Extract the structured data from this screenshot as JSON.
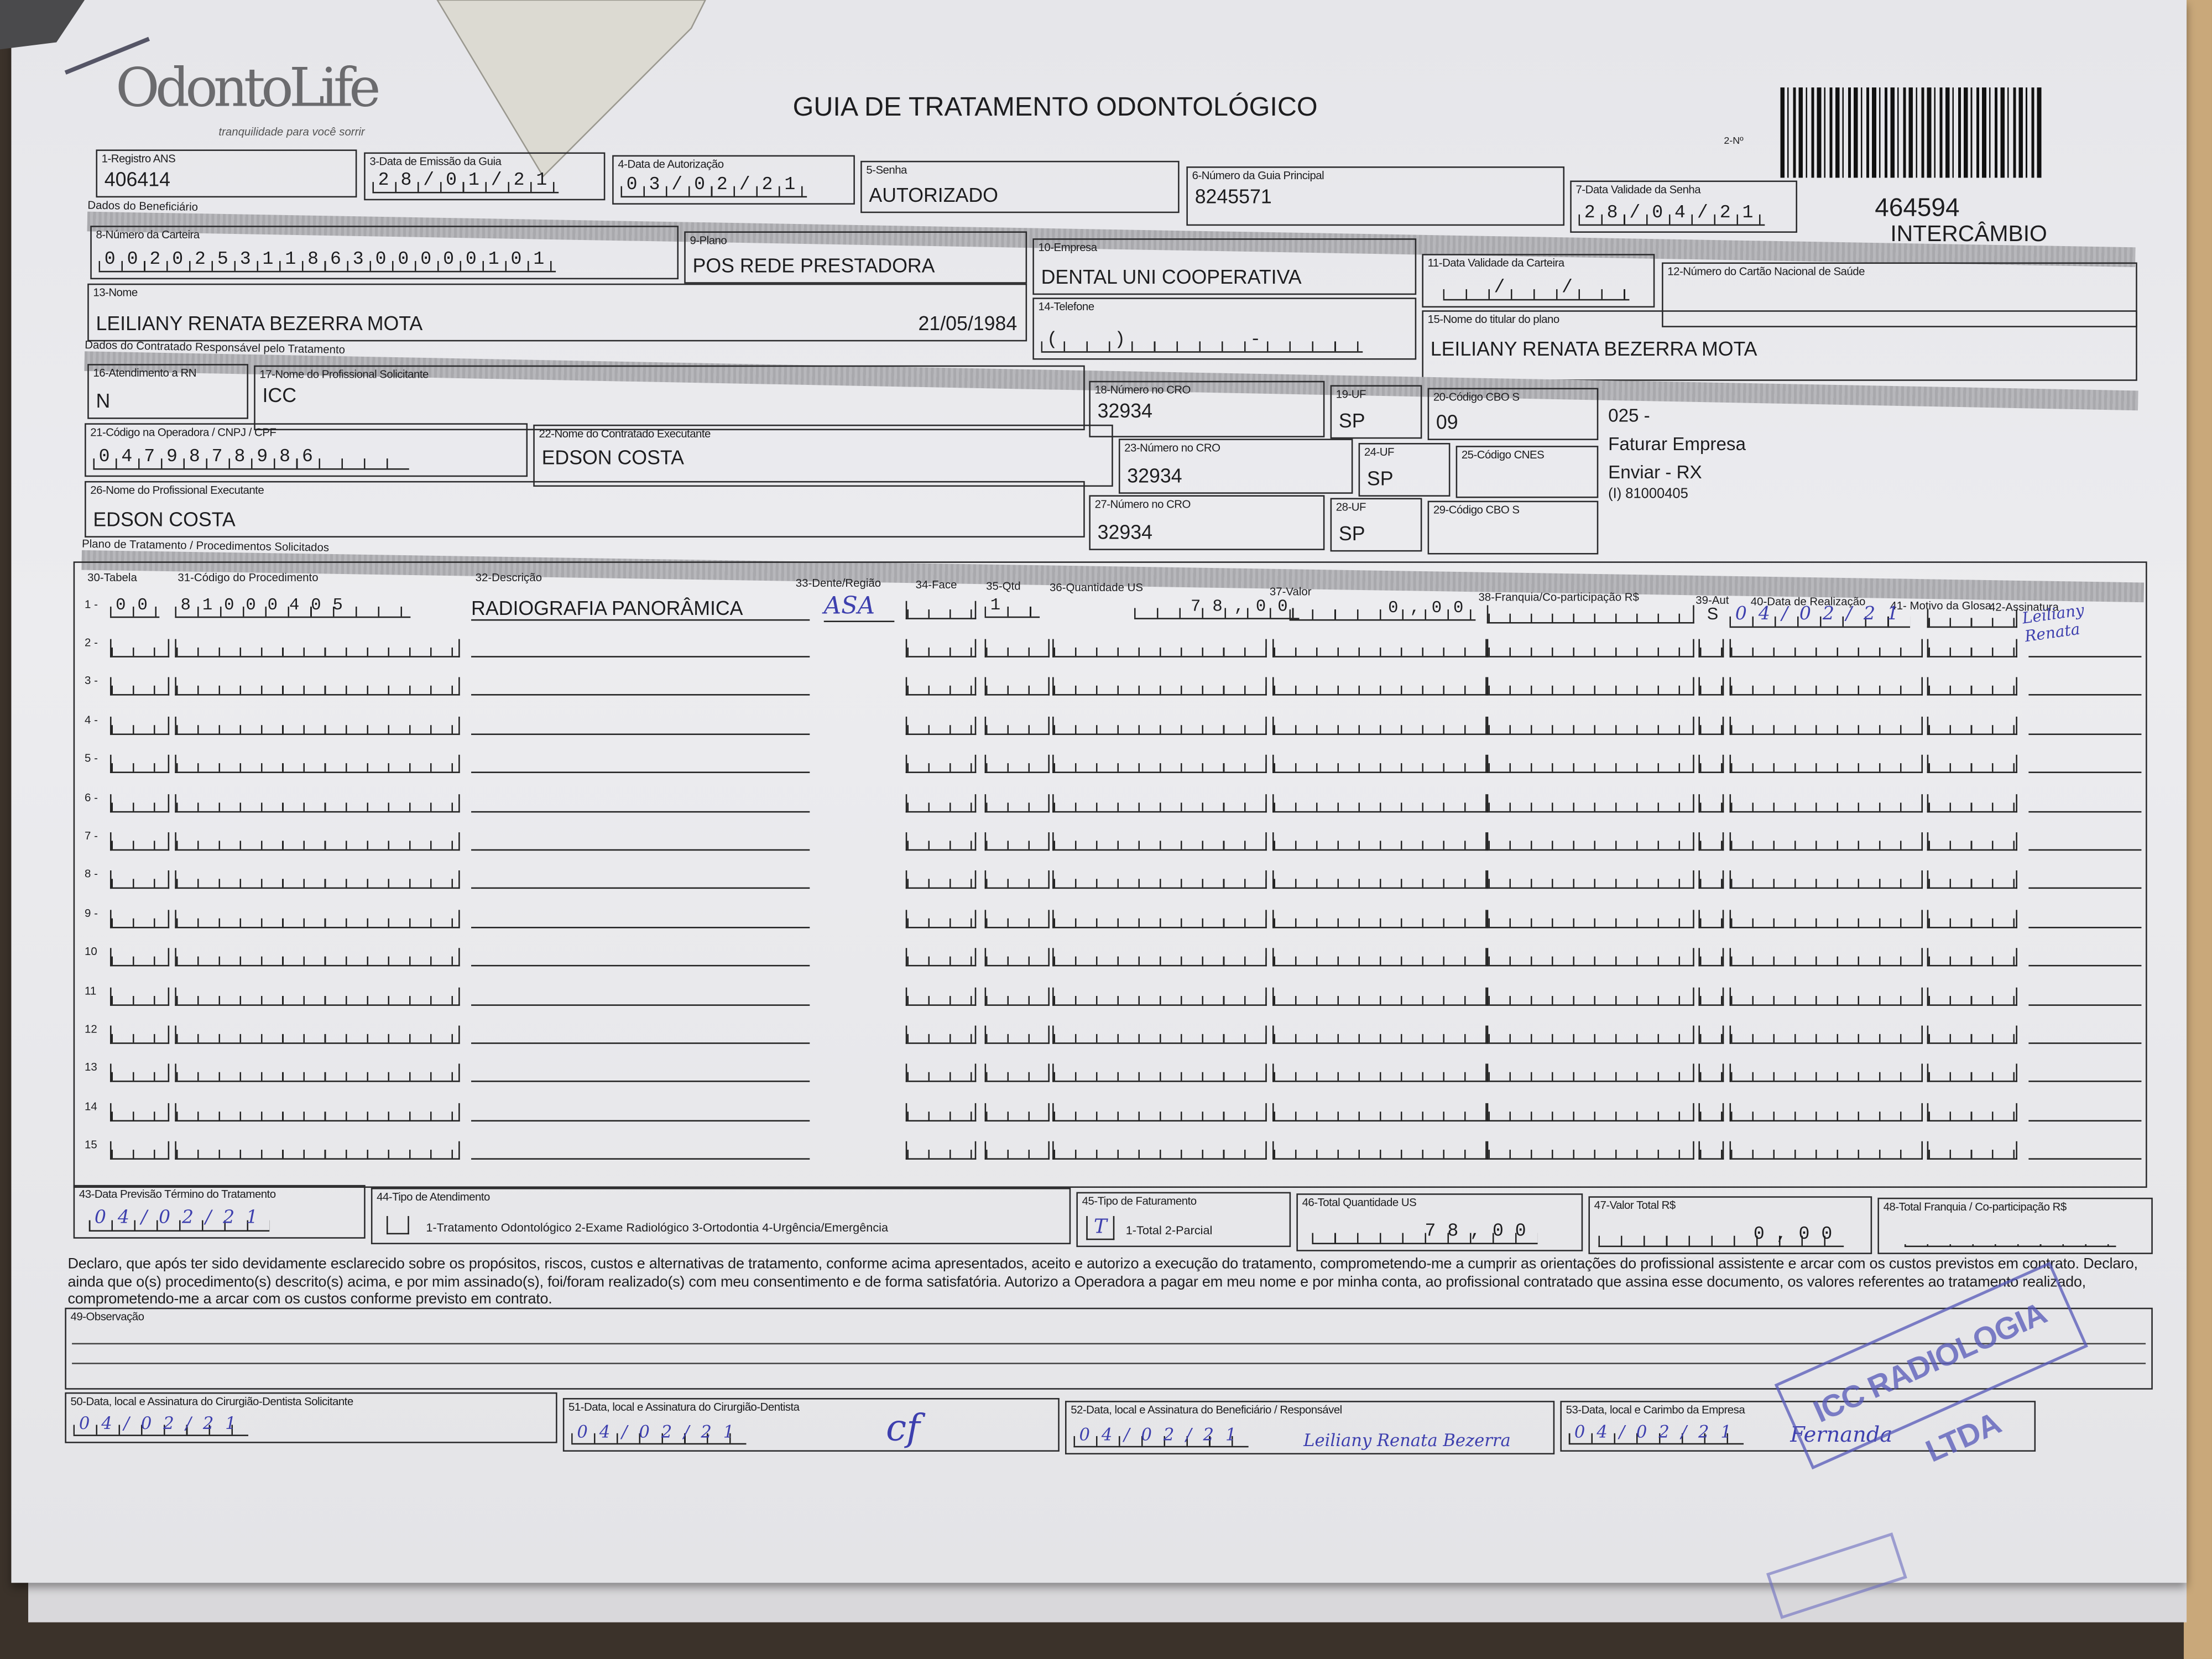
{
  "header": {
    "logo": "OdontoLife",
    "logo_tagline": "tranquilidade para você sorrir",
    "title": "GUIA DE TRATAMENTO ODONTOLÓGICO",
    "number_label": "2-Nº",
    "guide_number": "464594",
    "guide_type": "INTERCÂMBIO"
  },
  "fields": {
    "f1": {
      "label": "1-Registro ANS",
      "value": "406414"
    },
    "f3": {
      "label": "3-Data de Emissão da Guia",
      "value": "28/01/21"
    },
    "f4": {
      "label": "4-Data de Autorização",
      "value": "03/02/21"
    },
    "f5": {
      "label": "5-Senha",
      "value": "AUTORIZADO"
    },
    "f6": {
      "label": "6-Número da Guia Principal",
      "value": "8245571"
    },
    "f7": {
      "label": "7-Data Validade da Senha",
      "value": "28/04/21"
    },
    "f8": {
      "label": "8-Número da Carteira",
      "value": "00202531186300000101"
    },
    "f9": {
      "label": "9-Plano",
      "value": "POS REDE PRESTADORA"
    },
    "f10": {
      "label": "10-Empresa",
      "value": "DENTAL UNI  COOPERATIVA"
    },
    "f11": {
      "label": "11-Data Validade da Carteira",
      "value": "  /  /  "
    },
    "f12": {
      "label": "12-Número do Cartão Nacional de Saúde",
      "value": ""
    },
    "f13": {
      "label": "13-Nome",
      "value": "LEILIANY RENATA BEZERRA MOTA",
      "birth": "21/05/1984"
    },
    "f14": {
      "label": "14-Telefone",
      "value": "(  )     -    "
    },
    "f15": {
      "label": "15-Nome do titular do plano",
      "value": "LEILIANY RENATA BEZERRA MOTA"
    },
    "f16": {
      "label": "16-Atendimento a RN",
      "value": "N"
    },
    "f17": {
      "label": "17-Nome do Profissional Solicitante",
      "value": "ICC"
    },
    "f18": {
      "label": "18-Número no CRO",
      "value": "32934"
    },
    "f19": {
      "label": "19-UF",
      "value": "SP"
    },
    "f20": {
      "label": "20-Código CBO S",
      "value": "09"
    },
    "f21": {
      "label": "21-Código na Operadora / CNPJ / CPF",
      "value": "0479878986"
    },
    "f22": {
      "label": "22-Nome do Contratado Executante",
      "value": "EDSON COSTA"
    },
    "f23": {
      "label": "23-Número no CRO",
      "value": "32934"
    },
    "f24": {
      "label": "24-UF",
      "value": "SP"
    },
    "f25": {
      "label": "25-Código CNES",
      "value": ""
    },
    "f26": {
      "label": "26-Nome do Profissional Executante",
      "value": "EDSON COSTA"
    },
    "f27": {
      "label": "27-Número no CRO",
      "value": "32934"
    },
    "f28": {
      "label": "28-UF",
      "value": "SP"
    },
    "f29": {
      "label": "29-Código CBO S",
      "value": ""
    }
  },
  "side_notes": {
    "line1": "025 -",
    "line2": "Faturar Empresa",
    "line3": "Enviar - RX",
    "line4": "(I) 81000405"
  },
  "sections": {
    "beneficiario": "Dados do Beneficiário",
    "contratado": "Dados do Contratado Responsável pelo Tratamento",
    "plano": "Plano de Tratamento / Procedimentos Solicitados"
  },
  "table": {
    "headers": {
      "tabela": "30-Tabela",
      "codigo": "31-Código do Procedimento",
      "descricao": "32-Descrição",
      "dente": "33-Dente/Região",
      "face": "34-Face",
      "qtd": "35-Qtd",
      "qtd_us": "36-Quantidade US",
      "valor": "37-Valor",
      "franquia": "38-Franquia/Co-participação R$",
      "aut": "39-Aut",
      "data": "40-Data de Realização",
      "motivo": "41- Motivo da Glosa",
      "assinatura": "42-Assinatura"
    },
    "row1": {
      "n": "1 -",
      "tabela": "00",
      "codigo": "81000405",
      "descricao": "RADIOGRAFIA PANORÂMICA",
      "dente": "ASA",
      "qtd": "1",
      "qtd_us": "78,00",
      "valor": "0,00",
      "aut": "S",
      "data": "04/02/21",
      "assinatura": "Leiliany Renata"
    },
    "empty_rows": [
      "2 -",
      "3 -",
      "4 -",
      "5 -",
      "6 -",
      "7 -",
      "8 -",
      "9 -",
      "10",
      "11",
      "12",
      "13",
      "14",
      "15"
    ]
  },
  "totals": {
    "f43": {
      "label": "43-Data Previsão Término do Tratamento",
      "value": "04/02/21"
    },
    "f44": {
      "label": "44-Tipo de Atendimento",
      "options": "1-Tratamento Odontológico  2-Exame Radiológico  3-Ortodontia  4-Urgência/Emergência",
      "value": ""
    },
    "f45": {
      "label": "45-Tipo de Faturamento",
      "options": "1-Total  2-Parcial",
      "value": "T"
    },
    "f46": {
      "label": "46-Total Quantidade US",
      "value": "78,00"
    },
    "f47": {
      "label": "47-Valor Total R$",
      "value": "0,00"
    },
    "f48": {
      "label": "48-Total Franquia / Co-participação R$",
      "value": ""
    }
  },
  "declaration": "Declaro, que após ter sido devidamente esclarecido sobre os propósitos, riscos, custos e alternativas de tratamento, conforme acima apresentados, aceito e autorizo a execução do tratamento, comprometendo-me a cumprir as orientações do profissional assistente e arcar com os custos previstos em contrato. Declaro, ainda que o(s) procedimento(s) descrito(s) acima, e por mim assinado(s), foi/foram realizado(s) com meu consentimento e de forma satisfatória. Autorizo a Operadora a pagar em meu nome e por minha conta, ao profissional contratado que assina esse documento, os valores referentes ao tratamento realizado, comprometendo-me a arcar com os custos conforme previsto em contrato.",
  "observacao": {
    "label": "49-Observação",
    "value": ""
  },
  "signatures": {
    "f50": {
      "label": "50-Data, local e Assinatura do Cirurgião-Dentista Solicitante",
      "date": "04/02/21",
      "sign": ""
    },
    "f51": {
      "label": "51-Data, local e Assinatura do Cirurgião-Dentista",
      "date": "04/02/21",
      "sign": "cf"
    },
    "f52": {
      "label": "52-Data, local e Assinatura do Beneficiário / Responsável",
      "date": "04/02/21",
      "sign": "Leiliany Renata Bezerra"
    },
    "f53": {
      "label": "53-Data, local e Carimbo da Empresa",
      "date": "04/02/21",
      "sign": "Fernanda"
    }
  },
  "stamp": "ICC RADIOLOGIA LTDA",
  "colors": {
    "ink": "#3d3fae",
    "paper": "#ebebee",
    "print": "#1d1d1f"
  }
}
